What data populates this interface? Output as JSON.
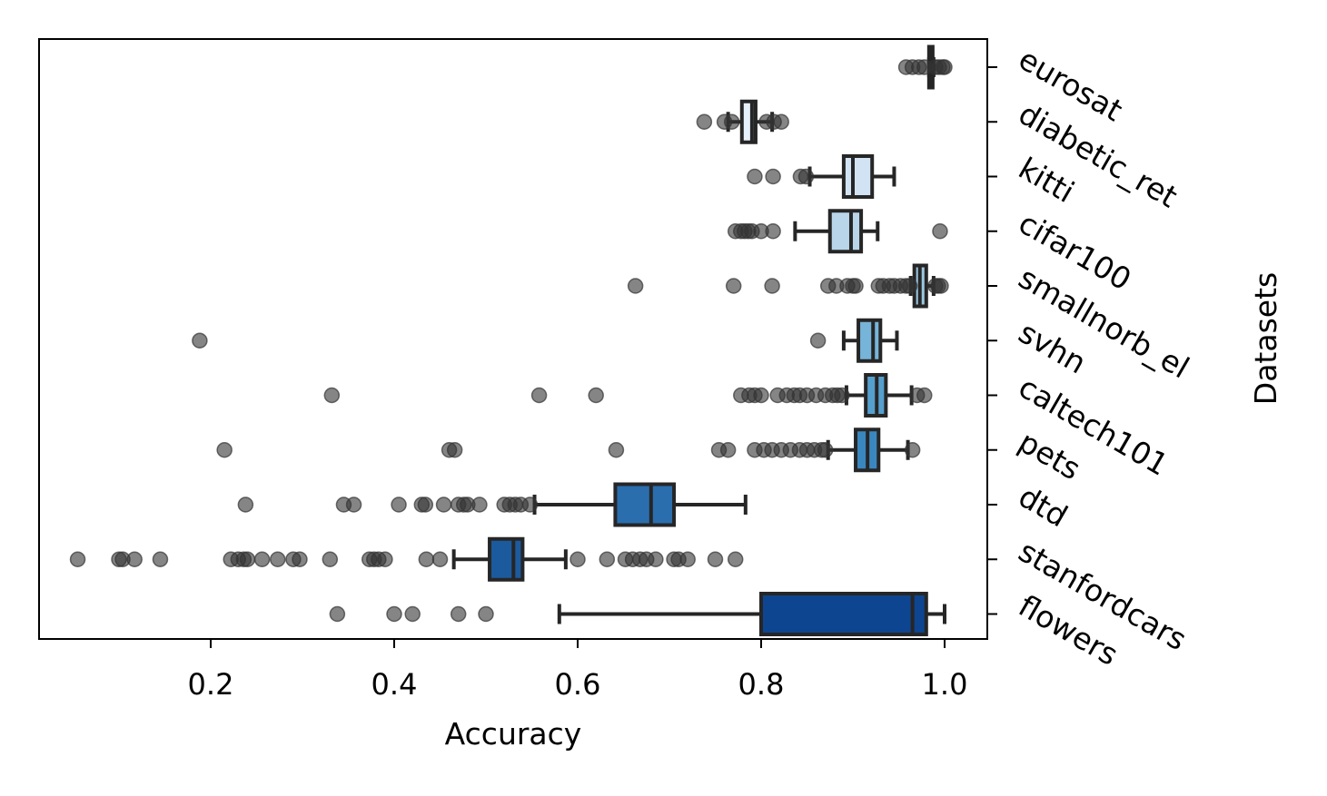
{
  "chart_data": {
    "type": "box",
    "orientation": "horizontal",
    "xlabel": "Accuracy",
    "ylabel": "Datasets",
    "xlim": [
      0.01,
      1.045
    ],
    "xticks": [
      "0.2",
      "0.4",
      "0.6",
      "0.8",
      "1.0"
    ],
    "xtick_values": [
      0.2,
      0.4,
      0.6,
      0.8,
      1.0
    ],
    "grid": false,
    "ytick_side": "right",
    "categories": [
      "eurosat",
      "diabetic_ret",
      "kitti",
      "cifar100",
      "smallnorb_el",
      "svhn",
      "caltech101",
      "pets",
      "dtd",
      "stanfordcars",
      "flowers"
    ],
    "boxes": [
      {
        "name": "eurosat",
        "whisker_low": 0.983,
        "q1": 0.983,
        "median": 0.985,
        "q3": 0.987,
        "whisker_high": 0.988,
        "color": "#f7fbff",
        "outliers": [
          0.958,
          0.965,
          0.972,
          0.978,
          0.99,
          0.994,
          0.998,
          1.0
        ]
      },
      {
        "name": "diabetic_ret",
        "whisker_low": 0.764,
        "q1": 0.779,
        "median": 0.79,
        "q3": 0.794,
        "whisker_high": 0.812,
        "color": "#e6f0fa",
        "outliers": [
          0.738,
          0.76,
          0.768,
          0.806,
          0.814,
          0.822
        ]
      },
      {
        "name": "kitti",
        "whisker_low": 0.853,
        "q1": 0.89,
        "median": 0.9,
        "q3": 0.921,
        "whisker_high": 0.945,
        "color": "#d2e3f3",
        "outliers": [
          0.793,
          0.813,
          0.843,
          0.849
        ]
      },
      {
        "name": "cifar100",
        "whisker_low": 0.837,
        "q1": 0.875,
        "median": 0.898,
        "q3": 0.909,
        "whisker_high": 0.927,
        "color": "#b8d5ea",
        "outliers": [
          0.772,
          0.778,
          0.782,
          0.786,
          0.79,
          0.8,
          0.813,
          0.995
        ]
      },
      {
        "name": "smallnorb_el",
        "whisker_low": 0.963,
        "q1": 0.967,
        "median": 0.973,
        "q3": 0.98,
        "whisker_high": 0.988,
        "color": "#99c7e0",
        "outliers": [
          0.663,
          0.77,
          0.812,
          0.873,
          0.882,
          0.894,
          0.9,
          0.903,
          0.928,
          0.933,
          0.94,
          0.945,
          0.952,
          0.958,
          0.962,
          0.99,
          0.993,
          0.996
        ]
      },
      {
        "name": "svhn",
        "whisker_low": 0.89,
        "q1": 0.906,
        "median": 0.922,
        "q3": 0.93,
        "whisker_high": 0.948,
        "color": "#77b4d9",
        "outliers": [
          0.188,
          0.862
        ]
      },
      {
        "name": "caltech101",
        "whisker_low": 0.893,
        "q1": 0.914,
        "median": 0.926,
        "q3": 0.936,
        "whisker_high": 0.964,
        "color": "#559fcd",
        "outliers": [
          0.332,
          0.558,
          0.62,
          0.778,
          0.787,
          0.793,
          0.8,
          0.818,
          0.828,
          0.836,
          0.842,
          0.85,
          0.86,
          0.87,
          0.878,
          0.883,
          0.888,
          0.97,
          0.978
        ]
      },
      {
        "name": "pets",
        "whisker_low": 0.873,
        "q1": 0.903,
        "median": 0.916,
        "q3": 0.928,
        "whisker_high": 0.96,
        "color": "#3a87c0",
        "outliers": [
          0.215,
          0.46,
          0.466,
          0.642,
          0.754,
          0.764,
          0.793,
          0.803,
          0.812,
          0.822,
          0.832,
          0.842,
          0.85,
          0.858,
          0.866,
          0.87,
          0.965
        ]
      },
      {
        "name": "dtd",
        "whisker_low": 0.553,
        "q1": 0.641,
        "median": 0.68,
        "q3": 0.705,
        "whisker_high": 0.783,
        "color": "#2a6eae",
        "outliers": [
          0.238,
          0.345,
          0.356,
          0.405,
          0.43,
          0.434,
          0.454,
          0.47,
          0.476,
          0.48,
          0.493,
          0.52,
          0.526,
          0.532,
          0.538,
          0.548
        ]
      },
      {
        "name": "stanfordcars",
        "whisker_low": 0.465,
        "q1": 0.504,
        "median": 0.53,
        "q3": 0.54,
        "whisker_high": 0.587,
        "color": "#1c5a9e",
        "outliers": [
          0.055,
          0.1,
          0.104,
          0.117,
          0.145,
          0.222,
          0.23,
          0.236,
          0.24,
          0.256,
          0.273,
          0.29,
          0.297,
          0.33,
          0.373,
          0.378,
          0.383,
          0.39,
          0.435,
          0.45,
          0.6,
          0.632,
          0.652,
          0.66,
          0.668,
          0.675,
          0.685,
          0.705,
          0.71,
          0.72,
          0.75,
          0.772
        ]
      },
      {
        "name": "flowers",
        "whisker_low": 0.58,
        "q1": 0.8,
        "median": 0.965,
        "q3": 0.98,
        "whisker_high": 1.0,
        "color": "#0d4590",
        "outliers": [
          0.338,
          0.4,
          0.42,
          0.47,
          0.5
        ]
      }
    ],
    "colors": {
      "edge": "#262626",
      "outlier": "#333333",
      "axis": "#000000"
    }
  }
}
